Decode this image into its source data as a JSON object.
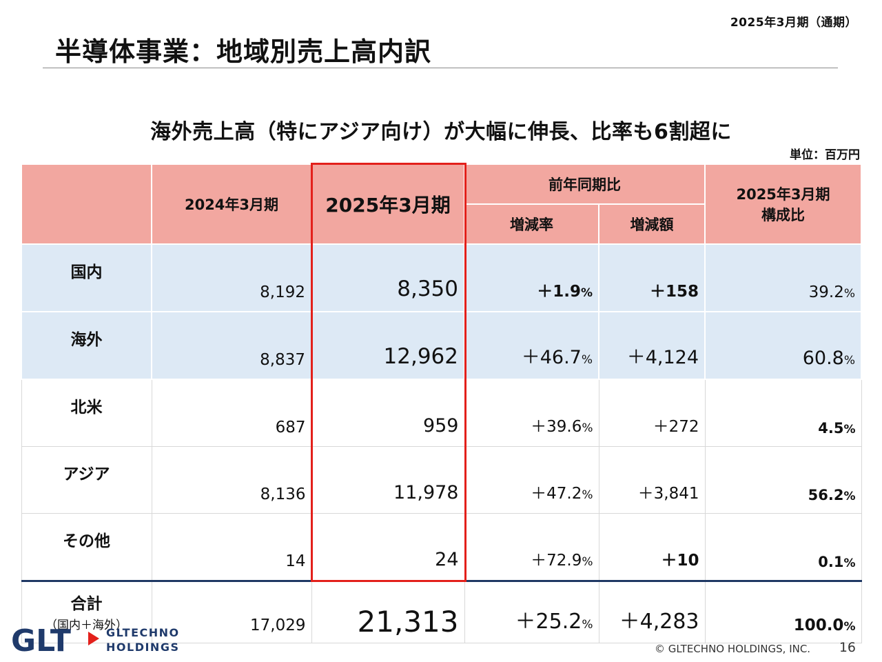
{
  "header": {
    "period": "2025年3月期（通期）",
    "title": "半導体事業：地域別売上高内訳",
    "headline": "海外売上高（特にアジア向け）が大幅に伸長、比率も6割超に",
    "unit": "単位：百万円"
  },
  "table": {
    "headers": {
      "prev_year": "2024年3月期",
      "curr_year": "2025年3月期",
      "yoy": "前年同期比",
      "yoy_rate": "増減率",
      "yoy_amount": "増減額",
      "share_line1": "2025年3月期",
      "share_line2": "構成比"
    },
    "rows": [
      {
        "label": "国内",
        "prev": "8,192",
        "curr": "8,350",
        "rate": "＋1.9",
        "amount": "＋158",
        "share": "39.2"
      },
      {
        "label": "海外",
        "prev": "8,837",
        "curr": "12,962",
        "rate": "＋46.7",
        "amount": "＋4,124",
        "share": "60.8"
      },
      {
        "label": "北米",
        "prev": "687",
        "curr": "959",
        "rate": "＋39.6",
        "amount": "＋272",
        "share": "4.5"
      },
      {
        "label": "アジア",
        "prev": "8,136",
        "curr": "11,978",
        "rate": "＋47.2",
        "amount": "＋3,841",
        "share": "56.2"
      },
      {
        "label": "その他",
        "prev": "14",
        "curr": "24",
        "rate": "＋72.9",
        "amount": "＋10",
        "share": "0.1"
      }
    ],
    "total": {
      "label": "合計",
      "sublabel": "（国内＋海外）",
      "prev": "17,029",
      "curr": "21,313",
      "rate": "＋25.2",
      "amount": "＋4,283",
      "share": "100.0"
    },
    "percent_sign": "%"
  },
  "footer": {
    "logo_text": "GLT",
    "logo_name_line1": "GLTECHNO",
    "logo_name_line2": "HOLDINGS",
    "copyright": "© GLTECHNO HOLDINGS, INC.",
    "page_number": "16"
  },
  "colors": {
    "header_fill": "#f2a7a0",
    "shade_fill": "#dde9f5",
    "highlight": "#e3201b",
    "total_rule": "#1f3864",
    "logo_navy": "#1f3a6b",
    "logo_red": "#e3201b"
  }
}
